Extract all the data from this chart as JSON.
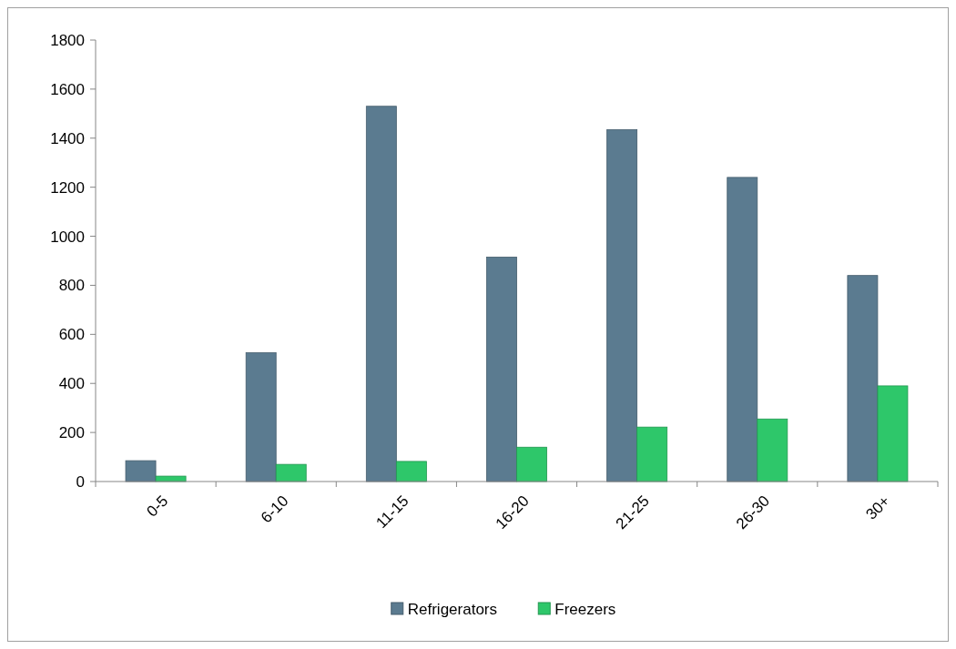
{
  "chart_data": {
    "type": "bar",
    "categories": [
      "0-5",
      "6-10",
      "11-15",
      "16-20",
      "21-25",
      "26-30",
      "30+"
    ],
    "series": [
      {
        "name": "Refrigerators",
        "color": "#5b7b90",
        "values": [
          85,
          525,
          1530,
          915,
          1435,
          1240,
          840
        ]
      },
      {
        "name": "Freezers",
        "color": "#2ec76a",
        "values": [
          22,
          70,
          82,
          140,
          222,
          255,
          390
        ]
      }
    ],
    "ylim": [
      0,
      1800
    ],
    "yticks": [
      0,
      200,
      400,
      600,
      800,
      1000,
      1200,
      1400,
      1600,
      1800
    ],
    "grid": false,
    "legend": "bottom"
  }
}
